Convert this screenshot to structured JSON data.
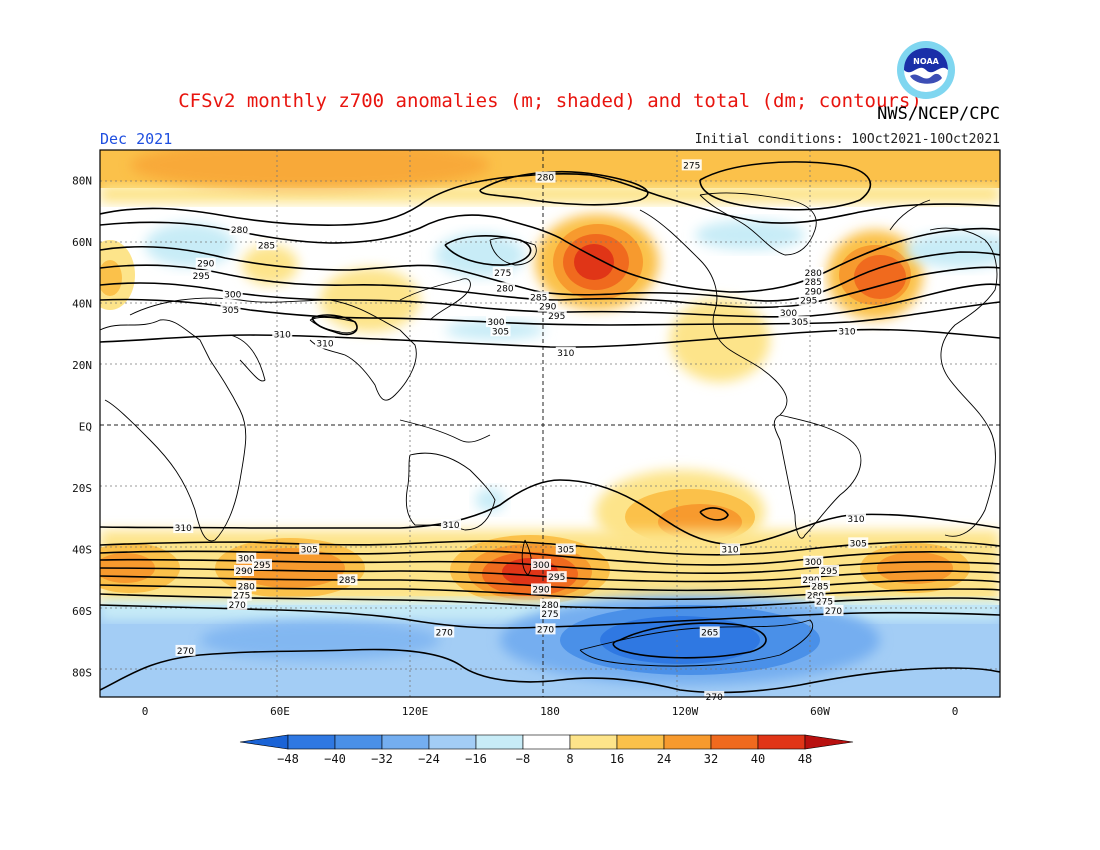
{
  "title": "CFSv2 monthly z700 anomalies (m; shaded) and total (dm; contours)",
  "agency": "NWS/NCEP/CPC",
  "month_label": "Dec 2021",
  "initial_conditions": "Initial conditions: 10Oct2021-10Oct2021",
  "logo_text": "NOAA",
  "lat_labels": [
    {
      "text": "80N",
      "lat": 80
    },
    {
      "text": "60N",
      "lat": 60
    },
    {
      "text": "40N",
      "lat": 40
    },
    {
      "text": "20N",
      "lat": 20
    },
    {
      "text": "EQ",
      "lat": 0
    },
    {
      "text": "20S",
      "lat": -20
    },
    {
      "text": "40S",
      "lat": -40
    },
    {
      "text": "60S",
      "lat": -60
    },
    {
      "text": "80S",
      "lat": -80
    }
  ],
  "lon_labels": [
    {
      "text": "0",
      "lon": 0
    },
    {
      "text": "60E",
      "lon": 60
    },
    {
      "text": "120E",
      "lon": 120
    },
    {
      "text": "180",
      "lon": 180
    },
    {
      "text": "120W",
      "lon": 240
    },
    {
      "text": "60W",
      "lon": 300
    },
    {
      "text": "0",
      "lon": 360
    }
  ],
  "colorbar": {
    "labels": [
      "−48",
      "−40",
      "−32",
      "−24",
      "−16",
      "−8",
      "8",
      "16",
      "24",
      "32",
      "40",
      "48"
    ],
    "colors": [
      "#1a63d6",
      "#2f78e2",
      "#4a90e8",
      "#74aef0",
      "#a3cdf5",
      "#c8ecf7",
      "#ffffff",
      "#fde48a",
      "#fbc14a",
      "#f79a2e",
      "#f06a1e",
      "#e03517",
      "#b8100f"
    ]
  },
  "contour_labels": [
    {
      "text": "275",
      "lon": 243,
      "lat": 85
    },
    {
      "text": "280",
      "lon": 178,
      "lat": 81
    },
    {
      "text": "280",
      "lon": 42,
      "lat": 64
    },
    {
      "text": "285",
      "lon": 54,
      "lat": 59
    },
    {
      "text": "290",
      "lon": 27,
      "lat": 53
    },
    {
      "text": "295",
      "lon": 25,
      "lat": 49
    },
    {
      "text": "300",
      "lon": 39,
      "lat": 43
    },
    {
      "text": "305",
      "lon": 38,
      "lat": 38
    },
    {
      "text": "310",
      "lon": 61,
      "lat": 30
    },
    {
      "text": "310",
      "lon": 80,
      "lat": 27
    },
    {
      "text": "275",
      "lon": 159,
      "lat": 50
    },
    {
      "text": "280",
      "lon": 160,
      "lat": 45
    },
    {
      "text": "285",
      "lon": 175,
      "lat": 42
    },
    {
      "text": "290",
      "lon": 179,
      "lat": 39
    },
    {
      "text": "295",
      "lon": 183,
      "lat": 36
    },
    {
      "text": "300",
      "lon": 156,
      "lat": 34
    },
    {
      "text": "305",
      "lon": 158,
      "lat": 31
    },
    {
      "text": "310",
      "lon": 187,
      "lat": 24
    },
    {
      "text": "280",
      "lon": 297,
      "lat": 50
    },
    {
      "text": "285",
      "lon": 297,
      "lat": 47
    },
    {
      "text": "290",
      "lon": 297,
      "lat": 44
    },
    {
      "text": "295",
      "lon": 295,
      "lat": 41
    },
    {
      "text": "300",
      "lon": 286,
      "lat": 37
    },
    {
      "text": "305",
      "lon": 291,
      "lat": 34
    },
    {
      "text": "310",
      "lon": 312,
      "lat": 31
    },
    {
      "text": "310",
      "lon": 17,
      "lat": -33
    },
    {
      "text": "310",
      "lon": 136,
      "lat": -32
    },
    {
      "text": "310",
      "lon": 260,
      "lat": -40
    },
    {
      "text": "310",
      "lon": 316,
      "lat": -30
    },
    {
      "text": "305",
      "lon": 73,
      "lat": -40
    },
    {
      "text": "305",
      "lon": 187,
      "lat": -40
    },
    {
      "text": "305",
      "lon": 317,
      "lat": -38
    },
    {
      "text": "300",
      "lon": 45,
      "lat": -43
    },
    {
      "text": "295",
      "lon": 52,
      "lat": -45
    },
    {
      "text": "290",
      "lon": 44,
      "lat": -47
    },
    {
      "text": "285",
      "lon": 90,
      "lat": -50
    },
    {
      "text": "280",
      "lon": 45,
      "lat": -52
    },
    {
      "text": "275",
      "lon": 43,
      "lat": -55
    },
    {
      "text": "270",
      "lon": 41,
      "lat": -58
    },
    {
      "text": "300",
      "lon": 176,
      "lat": -45
    },
    {
      "text": "295",
      "lon": 183,
      "lat": -49
    },
    {
      "text": "290",
      "lon": 176,
      "lat": -53
    },
    {
      "text": "280",
      "lon": 180,
      "lat": -58
    },
    {
      "text": "275",
      "lon": 180,
      "lat": -61
    },
    {
      "text": "270",
      "lon": 178,
      "lat": -66
    },
    {
      "text": "300",
      "lon": 297,
      "lat": -44
    },
    {
      "text": "295",
      "lon": 304,
      "lat": -47
    },
    {
      "text": "290",
      "lon": 296,
      "lat": -50
    },
    {
      "text": "285",
      "lon": 300,
      "lat": -52
    },
    {
      "text": "280",
      "lon": 298,
      "lat": -55
    },
    {
      "text": "275",
      "lon": 302,
      "lat": -57
    },
    {
      "text": "270",
      "lon": 306,
      "lat": -60
    },
    {
      "text": "270",
      "lon": 133,
      "lat": -67
    },
    {
      "text": "270",
      "lon": 18,
      "lat": -73
    },
    {
      "text": "265",
      "lon": 251,
      "lat": -67
    },
    {
      "text": "270",
      "lon": 253,
      "lat": -88
    }
  ]
}
